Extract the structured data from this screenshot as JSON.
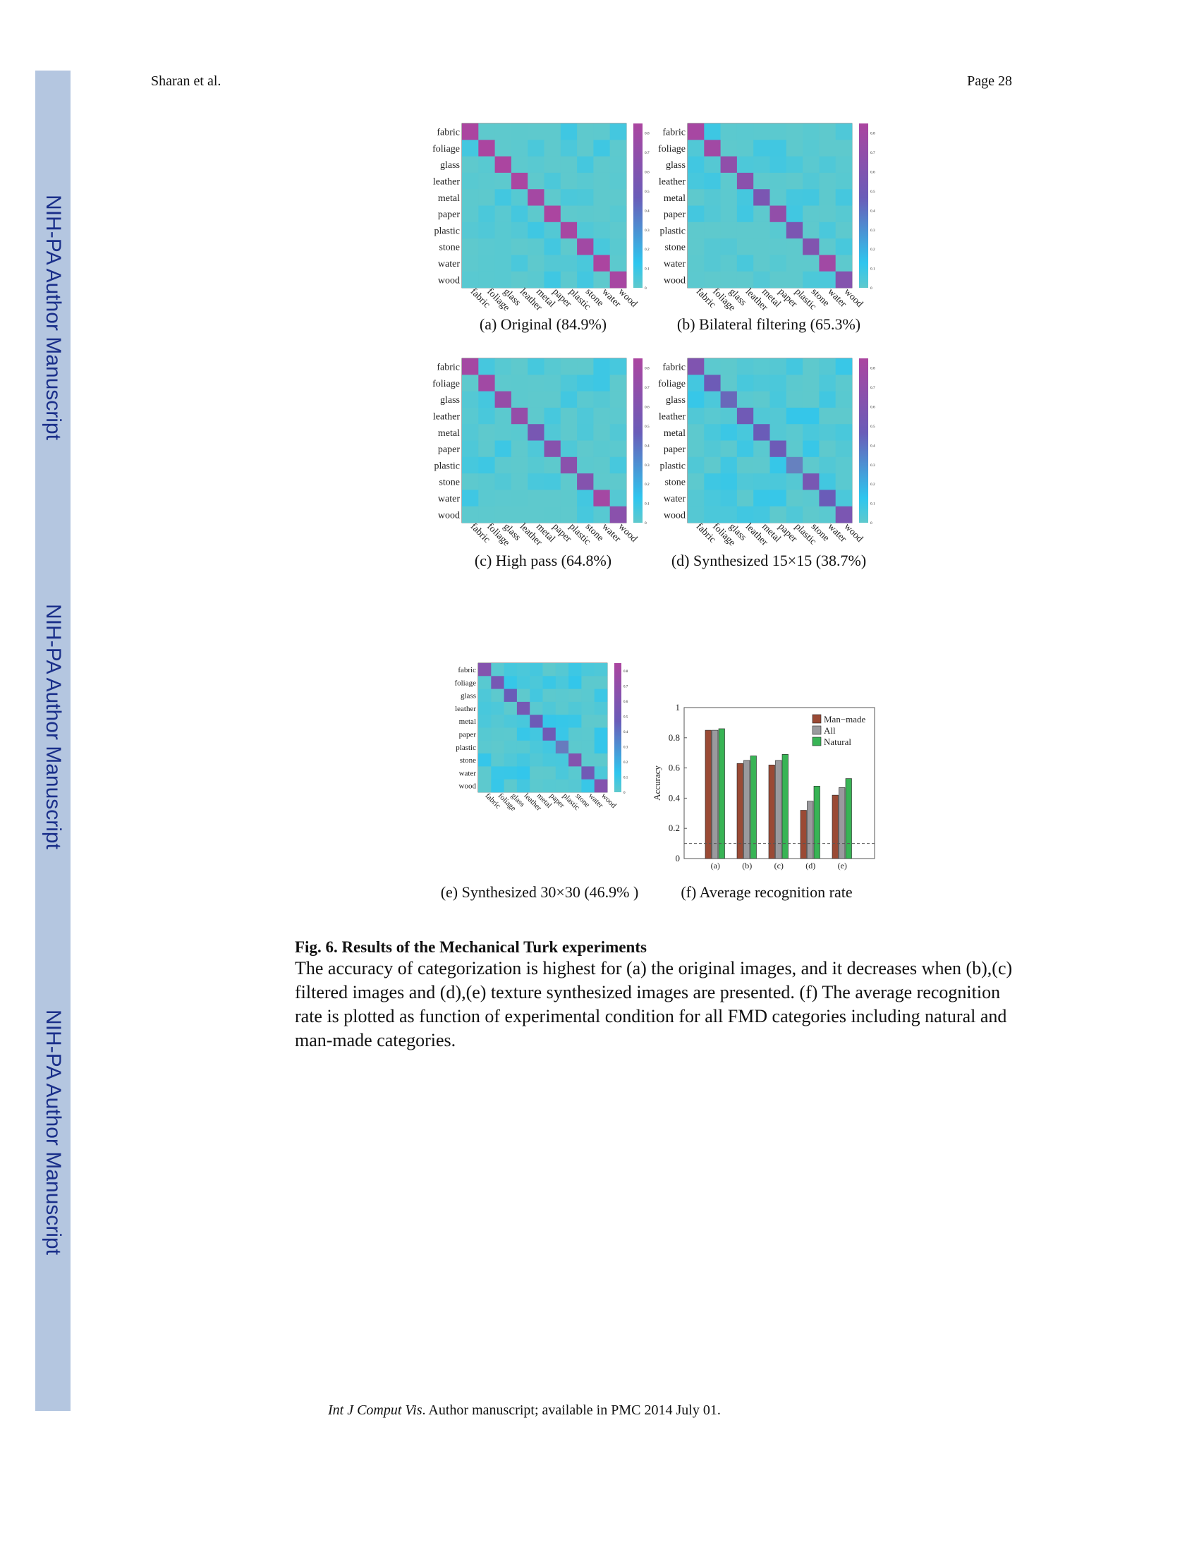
{
  "header": {
    "author": "Sharan et al.",
    "page": "Page 28"
  },
  "sidebar": {
    "label": "NIH-PA Author Manuscript"
  },
  "categories": [
    "fabric",
    "foliage",
    "glass",
    "leather",
    "metal",
    "paper",
    "plastic",
    "stone",
    "water",
    "wood"
  ],
  "colorbar_ticks": [
    "0",
    "0.1",
    "0.2",
    "0.3",
    "0.4",
    "0.5",
    "0.6",
    "0.7",
    "0.8"
  ],
  "colors": {
    "low": "#2ec6ee",
    "mid": "#6a5cb8",
    "high": "#ab45a0",
    "base": "#5ec9cd"
  },
  "panels": [
    {
      "caption": "(a)  Original (84.9%)",
      "diag": [
        0.85,
        0.88,
        0.86,
        0.84,
        0.8,
        0.85,
        0.82,
        0.78,
        0.88,
        0.82
      ]
    },
    {
      "caption": "(b)  Bilateral filtering (65.3%)",
      "diag": [
        0.82,
        0.78,
        0.66,
        0.62,
        0.52,
        0.68,
        0.52,
        0.56,
        0.78,
        0.58
      ]
    },
    {
      "caption": "(c)  High pass (64.8%)",
      "diag": [
        0.8,
        0.78,
        0.7,
        0.7,
        0.5,
        0.6,
        0.62,
        0.58,
        0.8,
        0.62
      ]
    },
    {
      "caption": "(d)  Synthesized 15×15 (38.7%)",
      "diag": [
        0.55,
        0.42,
        0.36,
        0.44,
        0.4,
        0.42,
        0.28,
        0.5,
        0.4,
        0.52
      ]
    },
    {
      "caption": "(e)  Synthesized 30×30 (46.9% )",
      "diag": [
        0.58,
        0.48,
        0.4,
        0.48,
        0.42,
        0.44,
        0.3,
        0.58,
        0.44,
        0.58
      ]
    },
    {
      "caption": "(f)  Average recognition rate"
    }
  ],
  "chart_data": {
    "type": "bar",
    "categories": [
      "(a)",
      "(b)",
      "(c)",
      "(d)",
      "(e)"
    ],
    "series": [
      {
        "name": "Man−made",
        "color": "#9a4a35",
        "values": [
          0.85,
          0.63,
          0.62,
          0.32,
          0.42
        ]
      },
      {
        "name": "All",
        "color": "#9a9a9e",
        "values": [
          0.85,
          0.65,
          0.65,
          0.38,
          0.47
        ]
      },
      {
        "name": "Natural",
        "color": "#38b455",
        "values": [
          0.86,
          0.68,
          0.69,
          0.48,
          0.53
        ]
      }
    ],
    "ylabel": "Accuracy",
    "ylim": [
      0,
      1
    ],
    "yticks": [
      "0",
      "0.2",
      "0.4",
      "0.6",
      "0.8",
      "1"
    ],
    "chance_level": 0.1,
    "legend": "top-right"
  },
  "figure": {
    "title": "Fig. 6. Results of the Mechanical Turk experiments",
    "body": "The accuracy of categorization is highest for (a) the original images, and it decreases when (b),(c) filtered images and (d),(e) texture synthesized images are presented. (f) The average recognition rate is plotted as function of experimental condition for all FMD categories including natural and man-made categories."
  },
  "footer": {
    "journal": "Int J Comput Vis",
    "rest": ". Author manuscript; available in PMC 2014 July 01."
  }
}
